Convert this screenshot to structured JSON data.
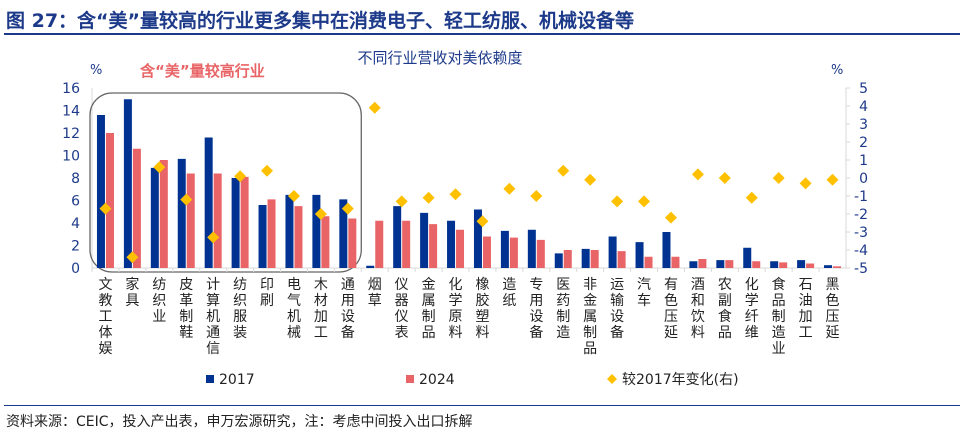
{
  "title": "图 27：含“美”量较高的行业更多集中在消费电子、轻工纺服、机械设备等",
  "source": "资料来源：CEIC，投入产出表，申万宏源研究，注：考虑中间投入出口拆解",
  "colors": {
    "s2017": "#003391",
    "s2024": "#e96466",
    "change": "#ffc000",
    "axis_text": "#1d3a8a",
    "highlight_text": "#e96466"
  },
  "chart_data": {
    "type": "bar",
    "title": "不同行业营收对美依赖度",
    "annotation": "含“美”量较高行业",
    "highlight_box": {
      "from_category": "文教工体娱",
      "to_category": "通用设备"
    },
    "left_unit": "%",
    "right_unit": "%",
    "ylim_left": [
      0,
      16
    ],
    "yticks_left": [
      "0",
      "2",
      "4",
      "6",
      "8",
      "10",
      "12",
      "14",
      "16"
    ],
    "ylim_right": [
      -5,
      5
    ],
    "yticks_right": [
      "-5",
      "-4",
      "-3",
      "-2",
      "-1",
      "0",
      "1",
      "2",
      "3",
      "4",
      "5"
    ],
    "grid": false,
    "legend_position": "bottom",
    "categories": [
      "文教工体娱",
      "家具",
      "纺织业",
      "皮革制鞋",
      "计算机通信",
      "纺织服装",
      "印刷",
      "电气机械",
      "木材加工",
      "通用设备",
      "烟草",
      "仪器仪表",
      "金属制品",
      "化学原料",
      "橡胶塑料",
      "造纸",
      "专用设备",
      "医药制造",
      "非金属制品",
      "运输设备",
      "汽车",
      "有色压延",
      "酒和饮料",
      "农副食品",
      "化学纤维",
      "食品制造业",
      "石油加工",
      "黑色压延"
    ],
    "series": [
      {
        "name": "2017",
        "type": "bar",
        "axis": "left",
        "values": [
          13.6,
          15.0,
          8.9,
          9.7,
          11.6,
          8.0,
          5.6,
          6.5,
          6.5,
          6.1,
          0.2,
          5.5,
          4.9,
          4.2,
          5.2,
          3.3,
          3.4,
          1.3,
          1.7,
          2.8,
          2.3,
          3.2,
          0.6,
          0.7,
          1.8,
          0.6,
          0.7,
          0.25
        ]
      },
      {
        "name": "2024",
        "type": "bar",
        "axis": "left",
        "values": [
          12.0,
          10.6,
          9.6,
          8.4,
          8.4,
          8.1,
          6.1,
          5.5,
          4.6,
          4.4,
          4.2,
          4.2,
          3.9,
          3.4,
          2.8,
          2.7,
          2.5,
          1.6,
          1.6,
          1.5,
          1.0,
          1.0,
          0.8,
          0.7,
          0.6,
          0.5,
          0.4,
          0.15
        ]
      },
      {
        "name": "较2017年变化(右)",
        "type": "scatter",
        "axis": "right",
        "values": [
          -1.7,
          -4.4,
          0.6,
          -1.2,
          -3.3,
          0.1,
          0.4,
          -1.0,
          -2.0,
          -1.7,
          3.9,
          -1.3,
          -1.1,
          -0.9,
          -2.4,
          -0.6,
          -1.0,
          0.4,
          -0.1,
          -1.3,
          -1.3,
          -2.2,
          0.2,
          0.0,
          -1.1,
          0.0,
          -0.3,
          -0.1
        ]
      }
    ]
  }
}
